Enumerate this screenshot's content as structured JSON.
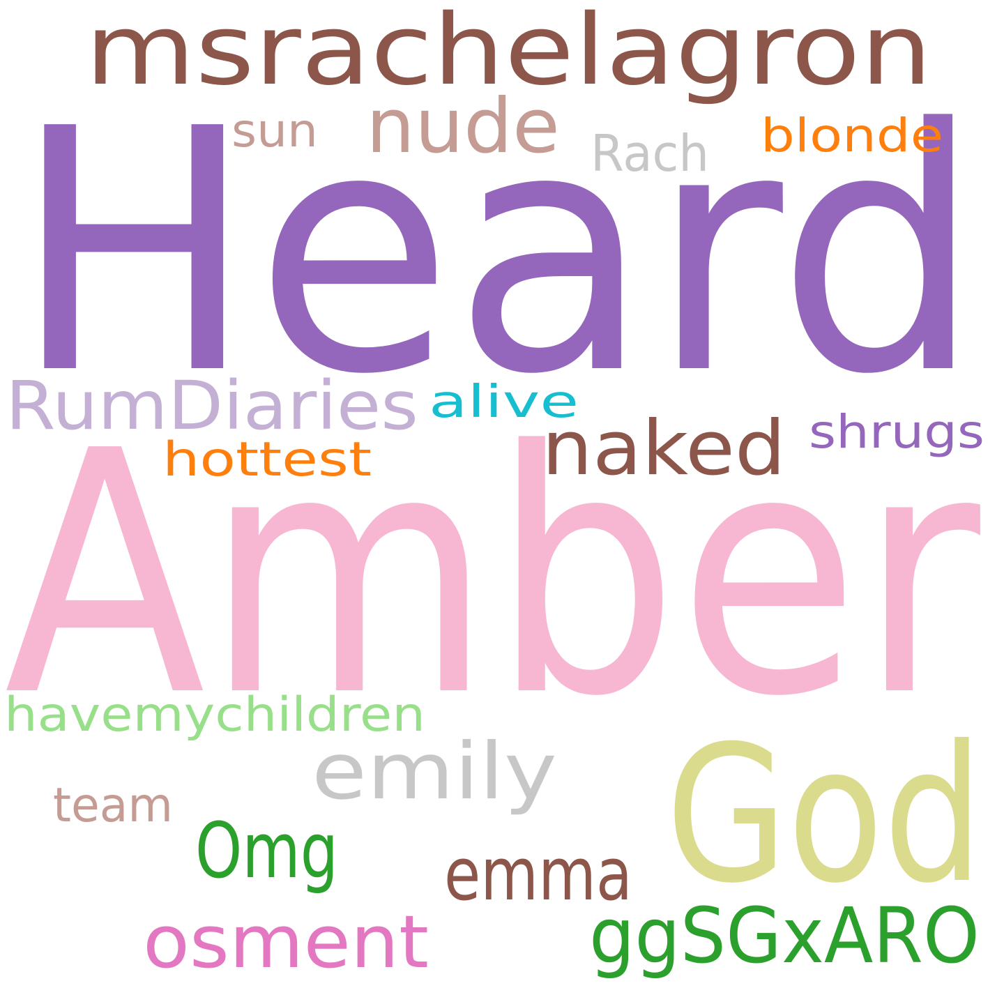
{
  "words": {
    "heard": {
      "text": "Heard",
      "color": "#9467bd"
    },
    "amber": {
      "text": "Amber",
      "color": "#f7b6d2"
    },
    "msrachelagron": {
      "text": "msrachelagron",
      "color": "#8c564b"
    },
    "god": {
      "text": "God",
      "color": "#dbdb8d"
    },
    "nude": {
      "text": "nude",
      "color": "#c49c94"
    },
    "sun": {
      "text": "sun",
      "color": "#c49c94"
    },
    "rach": {
      "text": "Rach",
      "color": "#c7c7c7"
    },
    "blonde": {
      "text": "blonde",
      "color": "#ff7f0e"
    },
    "rumdiaries": {
      "text": "RumDiaries",
      "color": "#c5b0d5"
    },
    "alive": {
      "text": "alive",
      "color": "#17becf"
    },
    "naked": {
      "text": "naked",
      "color": "#8c564b"
    },
    "shrugs": {
      "text": "shrugs",
      "color": "#9467bd"
    },
    "hottest": {
      "text": "hottest",
      "color": "#ff7f0e"
    },
    "havemychildren": {
      "text": "havemychildren",
      "color": "#98df8a"
    },
    "emily": {
      "text": "emily",
      "color": "#c7c7c7"
    },
    "team": {
      "text": "team",
      "color": "#c49c94"
    },
    "omg": {
      "text": "Omg",
      "color": "#2ca02c"
    },
    "emma": {
      "text": "emma",
      "color": "#8c564b"
    },
    "osment": {
      "text": "osment",
      "color": "#e377c2"
    },
    "ggsgxaro": {
      "text": "ggSGxARO",
      "color": "#2ca02c"
    }
  }
}
